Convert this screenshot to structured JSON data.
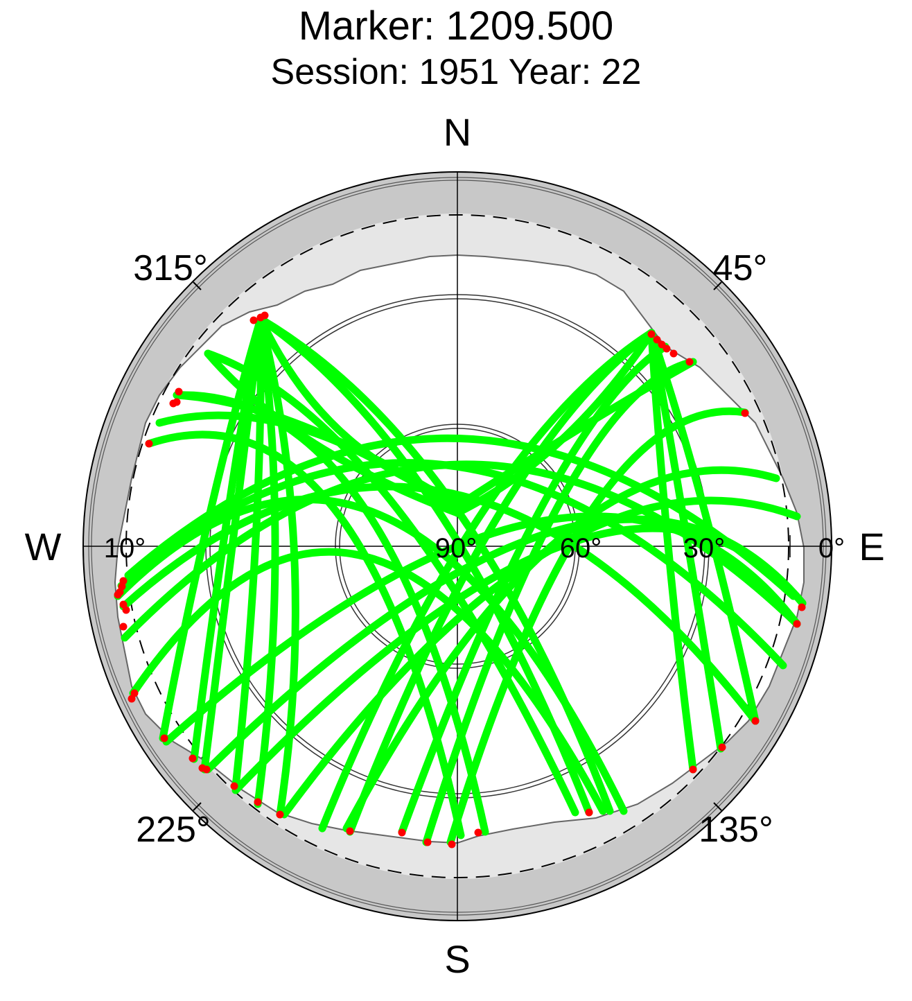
{
  "chart_data": {
    "type": "scatter",
    "projection": "polar skyplot (azimuth clockwise from North, elevation 90° at center, 0° at rim)",
    "title": "Marker: 1209.500",
    "subtitle": "Session: 1951 Year: 22",
    "cardinal_labels": {
      "north": "N",
      "east": "E",
      "south": "S",
      "west": "W"
    },
    "azimuth_tick_labels": [
      "45°",
      "135°",
      "225°",
      "315°"
    ],
    "elevation_tick_labels": [
      "90°",
      "60°",
      "30°",
      "10°",
      "0°"
    ],
    "elevation_circles": [
      60,
      30
    ],
    "elevation_mask_circle": 10,
    "colors": {
      "track": "#00ff00",
      "track_end": "#ff0000",
      "outer_band": "#c8c8c8",
      "horizon_mask": "#e6e6e6",
      "frame": "#000000"
    },
    "series": [
      {
        "name": "",
        "color": "#00ff00",
        "points_az_el": [
          [
            270,
            10
          ],
          [
            315,
            12
          ],
          [
            0,
            46
          ],
          [
            45,
            13
          ],
          [
            90,
            5
          ],
          [
            135,
            18
          ],
          [
            180,
            7
          ]
        ]
      }
    ]
  }
}
